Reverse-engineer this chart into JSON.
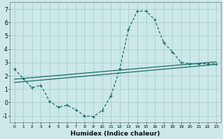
{
  "xlabel": "Humidex (Indice chaleur)",
  "bg_color": "#cce8e8",
  "grid_color": "#aacfcf",
  "line_color": "#1a6b6b",
  "y_curve": [
    2.5,
    1.8,
    1.1,
    1.3,
    0.1,
    -0.35,
    -0.2,
    -0.55,
    -1.0,
    -1.05,
    -0.6,
    0.5,
    2.5,
    5.5,
    6.85,
    6.85,
    6.2,
    4.5,
    3.8,
    3.0,
    2.9,
    2.9,
    2.9,
    2.9
  ],
  "x_curve": [
    0,
    1,
    2,
    3,
    4,
    5,
    6,
    7,
    8,
    9,
    10,
    11,
    12,
    13,
    14,
    15,
    16,
    17,
    18,
    19,
    20,
    21,
    22,
    23
  ],
  "line1_x": [
    0,
    23
  ],
  "line1_y": [
    1.5,
    2.85
  ],
  "line2_x": [
    0,
    23
  ],
  "line2_y": [
    1.75,
    3.05
  ],
  "ylim": [
    -1.5,
    7.5
  ],
  "xlim": [
    -0.5,
    23.5
  ],
  "yticks": [
    -1,
    0,
    1,
    2,
    3,
    4,
    5,
    6,
    7
  ],
  "xticks": [
    0,
    1,
    2,
    3,
    4,
    5,
    6,
    7,
    8,
    9,
    10,
    11,
    12,
    13,
    14,
    15,
    16,
    17,
    18,
    19,
    20,
    21,
    22,
    23
  ]
}
